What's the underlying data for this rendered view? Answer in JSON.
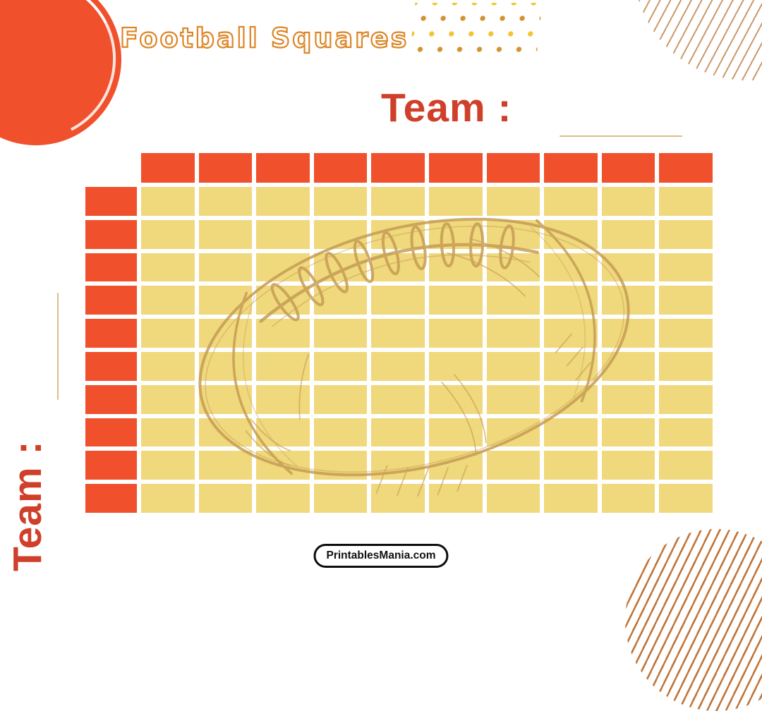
{
  "page": {
    "title": "Football Squares",
    "watermark": "PrintablesMania.com"
  },
  "team_top": {
    "label": "Team :"
  },
  "team_left": {
    "label": "Team :"
  },
  "grid": {
    "rows": 10,
    "cols": 10,
    "header_row_cells": 10,
    "header_col_cells": 10
  },
  "colors": {
    "accent_orange": "#F0512C",
    "cell_yellow": "#F0D87D",
    "team_text": "#CF3F2A",
    "title_outline": "#DD8627",
    "sketch_tan": "#C49B52",
    "underline_tan": "#D9C084",
    "dot_yellow": "#F1C431",
    "dot_amber": "#D2922E",
    "hatch_light": "#C9996B",
    "hatch_brown": "#C1763B"
  }
}
